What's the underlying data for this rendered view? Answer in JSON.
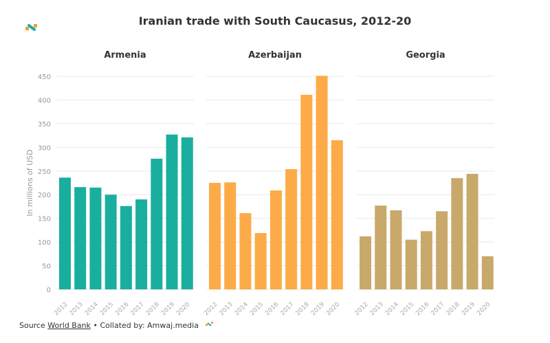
{
  "chart_data": [
    {
      "type": "bar",
      "title": "Armenia",
      "categories": [
        "2012",
        "2013",
        "2014",
        "2015",
        "2016",
        "2017",
        "2018",
        "2019",
        "2020"
      ],
      "values": [
        236,
        216,
        215,
        200,
        176,
        190,
        276,
        327,
        321
      ],
      "color": "#1aae9f",
      "ylabel": "In millions of USD",
      "ylim": [
        0,
        450
      ],
      "yticks": [
        0,
        50,
        100,
        150,
        200,
        250,
        300,
        350,
        400,
        450
      ],
      "grid": true
    },
    {
      "type": "bar",
      "title": "Azerbaijan",
      "categories": [
        "2012",
        "2013",
        "2014",
        "2015",
        "2016",
        "2017",
        "2018",
        "2019",
        "2020"
      ],
      "values": [
        225,
        226,
        161,
        119,
        209,
        254,
        411,
        451,
        315
      ],
      "color": "#fdab48",
      "ylim": [
        0,
        450
      ],
      "grid": true
    },
    {
      "type": "bar",
      "title": "Georgia",
      "categories": [
        "2012",
        "2013",
        "2014",
        "2015",
        "2016",
        "2017",
        "2018",
        "2019",
        "2020"
      ],
      "values": [
        112,
        177,
        167,
        105,
        123,
        165,
        235,
        244,
        70
      ],
      "color": "#c9a86c",
      "ylim": [
        0,
        450
      ],
      "grid": true
    }
  ],
  "title": "Iranian trade with South Caucasus, 2012-20",
  "footer": {
    "source_label": "Source",
    "source_link": "World Bank",
    "separator": "•",
    "collated": "Collated by: Amwaj.media"
  },
  "logo": {
    "text": "Amwaj.media",
    "colors": [
      "#f39c3c",
      "#1aae9f"
    ]
  }
}
